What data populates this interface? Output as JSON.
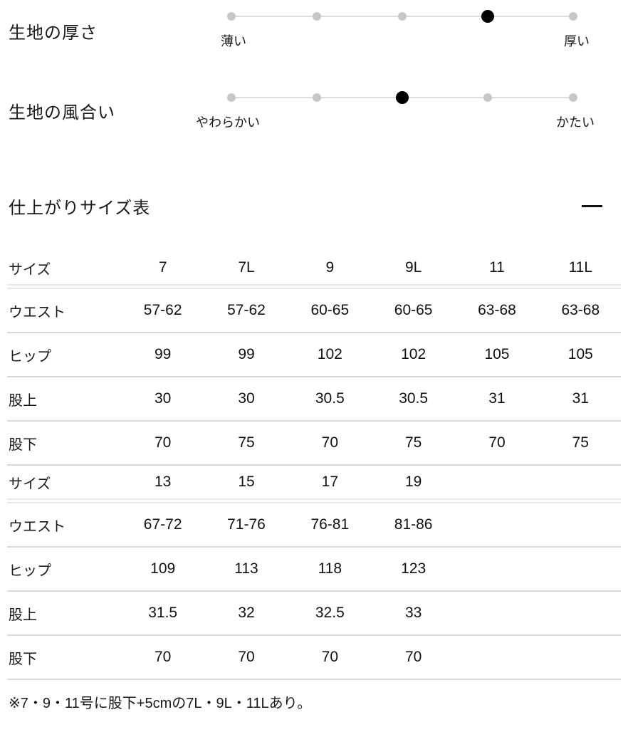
{
  "fabric_scales": [
    {
      "label": "生地の厚さ",
      "left_label": "薄い",
      "right_label": "厚い",
      "dots": 5,
      "active_index": 3
    },
    {
      "label": "生地の風合い",
      "left_label": "やわらかい",
      "right_label": "かたい",
      "dots": 5,
      "active_index": 2
    }
  ],
  "size_section": {
    "title": "仕上がりサイズ表",
    "collapse_icon": "minus-icon",
    "table": {
      "rows": [
        {
          "label": "サイズ",
          "header": true,
          "values": [
            "7",
            "7L",
            "9",
            "9L",
            "11",
            "11L"
          ]
        },
        {
          "label": "ウエスト",
          "header": false,
          "values": [
            "57-62",
            "57-62",
            "60-65",
            "60-65",
            "63-68",
            "63-68"
          ]
        },
        {
          "label": "ヒップ",
          "header": false,
          "values": [
            "99",
            "99",
            "102",
            "102",
            "105",
            "105"
          ]
        },
        {
          "label": "股上",
          "header": false,
          "values": [
            "30",
            "30",
            "30.5",
            "30.5",
            "31",
            "31"
          ]
        },
        {
          "label": "股下",
          "header": false,
          "values": [
            "70",
            "75",
            "70",
            "75",
            "70",
            "75"
          ]
        },
        {
          "label": "サイズ",
          "header": true,
          "values": [
            "13",
            "15",
            "17",
            "19",
            "",
            ""
          ]
        },
        {
          "label": "ウエスト",
          "header": false,
          "values": [
            "67-72",
            "71-76",
            "76-81",
            "81-86",
            "",
            ""
          ]
        },
        {
          "label": "ヒップ",
          "header": false,
          "values": [
            "109",
            "113",
            "118",
            "123",
            "",
            ""
          ]
        },
        {
          "label": "股上",
          "header": false,
          "values": [
            "31.5",
            "32",
            "32.5",
            "33",
            "",
            ""
          ]
        },
        {
          "label": "股下",
          "header": false,
          "values": [
            "70",
            "70",
            "70",
            "70",
            "",
            ""
          ]
        }
      ]
    },
    "note": "※7・9・11号に股下+5cmの7L・9L・11Lあり。"
  },
  "colors": {
    "background": "#ffffff",
    "text": "#111111",
    "active_dot": "#000000",
    "inactive_dot": "#c7c7c7",
    "track_line": "#dcdcdc",
    "divider_single": "#d9d9d9",
    "divider_double": "#e8e8e8"
  }
}
